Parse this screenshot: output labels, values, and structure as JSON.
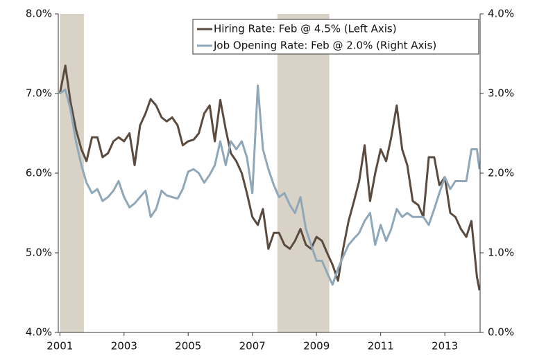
{
  "chart_data": {
    "type": "line",
    "x": [
      2001,
      2001.17,
      2001.33,
      2001.5,
      2001.67,
      2001.83,
      2002,
      2002.17,
      2002.33,
      2002.5,
      2002.67,
      2002.83,
      2003,
      2003.17,
      2003.33,
      2003.5,
      2003.67,
      2003.83,
      2004,
      2004.17,
      2004.33,
      2004.5,
      2004.67,
      2004.83,
      2005,
      2005.17,
      2005.33,
      2005.5,
      2005.67,
      2005.83,
      2006,
      2006.17,
      2006.33,
      2006.5,
      2006.67,
      2006.83,
      2007,
      2007.17,
      2007.33,
      2007.5,
      2007.67,
      2007.83,
      2008,
      2008.17,
      2008.33,
      2008.5,
      2008.67,
      2008.83,
      2009,
      2009.17,
      2009.33,
      2009.5,
      2009.67,
      2009.83,
      2010,
      2010.17,
      2010.33,
      2010.5,
      2010.67,
      2010.83,
      2011,
      2011.17,
      2011.33,
      2011.5,
      2011.67,
      2011.83,
      2012,
      2012.17,
      2012.33,
      2012.5,
      2012.67,
      2012.83,
      2013,
      2013.17,
      2013.33,
      2013.5,
      2013.67,
      2013.83,
      2014,
      2014.08
    ],
    "series": [
      {
        "name": "Hiring Rate: Feb @ 4.5% (Left Axis)",
        "color": "#5b4a3e",
        "values": [
          7.0,
          7.35,
          6.9,
          6.55,
          6.3,
          6.15,
          6.45,
          6.45,
          6.2,
          6.25,
          6.4,
          6.45,
          6.4,
          6.5,
          6.1,
          6.6,
          6.75,
          6.93,
          6.85,
          6.7,
          6.65,
          6.7,
          6.6,
          6.35,
          6.4,
          6.42,
          6.5,
          6.75,
          6.85,
          6.4,
          6.92,
          6.55,
          6.25,
          6.15,
          6.0,
          5.75,
          5.45,
          5.35,
          5.55,
          5.05,
          5.25,
          5.25,
          5.1,
          5.05,
          5.15,
          5.3,
          5.1,
          5.05,
          5.2,
          5.15,
          5.0,
          4.85,
          4.65,
          5.05,
          5.4,
          5.65,
          5.9,
          6.35,
          5.65,
          6.0,
          6.3,
          6.15,
          6.45,
          6.85,
          6.3,
          6.1,
          5.65,
          5.6,
          5.45,
          6.2,
          6.2,
          5.85,
          5.95,
          5.5,
          5.45,
          5.3,
          5.2,
          5.4,
          4.7,
          4.53
        ]
      },
      {
        "name": "Job Opening Rate: Feb @ 2.0% (Right Axis)",
        "color": "#8ea7b9",
        "axis": "y2",
        "values": [
          3.0,
          3.05,
          2.8,
          2.4,
          2.1,
          1.88,
          1.75,
          1.8,
          1.65,
          1.7,
          1.78,
          1.9,
          1.7,
          1.57,
          1.62,
          1.7,
          1.78,
          1.45,
          1.55,
          1.78,
          1.72,
          1.7,
          1.68,
          1.8,
          2.02,
          2.05,
          2.0,
          1.88,
          1.98,
          2.1,
          2.4,
          2.1,
          2.4,
          2.3,
          2.4,
          2.2,
          1.75,
          3.1,
          2.3,
          2.05,
          1.85,
          1.7,
          1.75,
          1.6,
          1.5,
          1.7,
          1.3,
          1.1,
          0.9,
          0.9,
          0.75,
          0.6,
          0.8,
          0.95,
          1.1,
          1.18,
          1.25,
          1.4,
          1.5,
          1.1,
          1.35,
          1.15,
          1.3,
          1.55,
          1.45,
          1.5,
          1.45,
          1.45,
          1.45,
          1.35,
          1.55,
          1.75,
          1.95,
          1.8,
          1.9,
          1.9,
          1.9,
          2.3,
          2.3,
          2.05
        ]
      }
    ],
    "shaded": [
      [
        2001.0,
        2001.75
      ],
      [
        2007.78,
        2009.4
      ]
    ],
    "shade_color": "#d9d3c7",
    "xlim": [
      2000.95,
      2014.1
    ],
    "xticks": [
      2001,
      2003,
      2005,
      2007,
      2009,
      2011,
      2013
    ],
    "ylim": [
      4,
      8
    ],
    "yticks": [
      {
        "value": 4,
        "label": "4.0%"
      },
      {
        "value": 5,
        "label": "5.0%"
      },
      {
        "value": 6,
        "label": "6.0%"
      },
      {
        "value": 7,
        "label": "7.0%"
      },
      {
        "value": 8,
        "label": "8.0%"
      }
    ],
    "y2lim": [
      0,
      4
    ],
    "y2ticks": [
      {
        "value": 0,
        "label": "0.0%"
      },
      {
        "value": 1,
        "label": "1.0%"
      },
      {
        "value": 2,
        "label": "2.0%"
      },
      {
        "value": 3,
        "label": "3.0%"
      },
      {
        "value": 4,
        "label": "4.0%"
      }
    ]
  }
}
